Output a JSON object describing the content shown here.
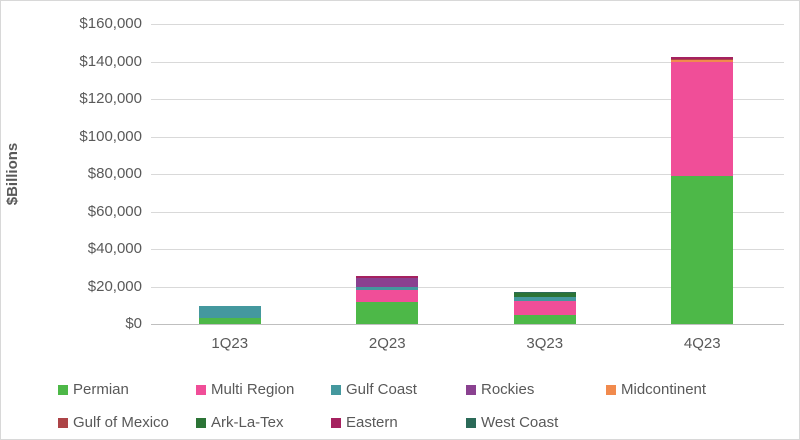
{
  "chart_data": {
    "type": "bar",
    "stacked": true,
    "title": "",
    "xlabel": "",
    "ylabel": "$Billions",
    "ylim": [
      0,
      160000
    ],
    "ytick_step": 20000,
    "ytick_labels": [
      "$0",
      "$20,000",
      "$40,000",
      "$60,000",
      "$80,000",
      "$100,000",
      "$120,000",
      "$140,000",
      "$160,000"
    ],
    "categories": [
      "1Q23",
      "2Q23",
      "3Q23",
      "4Q23"
    ],
    "series": [
      {
        "name": "Permian",
        "color": "#4db848",
        "values": [
          3000,
          12000,
          5000,
          79000
        ]
      },
      {
        "name": "Multi Region",
        "color": "#f04e98",
        "values": [
          0,
          6000,
          7500,
          60500
        ]
      },
      {
        "name": "Gulf Coast",
        "color": "#44989e",
        "values": [
          6500,
          2000,
          2000,
          0
        ]
      },
      {
        "name": "Rockies",
        "color": "#8a4190",
        "values": [
          0,
          4500,
          0,
          0
        ]
      },
      {
        "name": "Midcontinent",
        "color": "#f18a4d",
        "values": [
          0,
          0,
          0,
          1500
        ]
      },
      {
        "name": "Gulf of Mexico",
        "color": "#ad4447",
        "values": [
          0,
          0,
          0,
          500
        ]
      },
      {
        "name": "Ark-La-Tex",
        "color": "#2c7436",
        "values": [
          0,
          0,
          2000,
          0
        ]
      },
      {
        "name": "Eastern",
        "color": "#a5215f",
        "values": [
          0,
          1000,
          0,
          700
        ]
      },
      {
        "name": "West Coast",
        "color": "#2b6a58",
        "values": [
          0,
          0,
          500,
          0
        ]
      }
    ],
    "grid": true,
    "legend_position": "bottom",
    "text_color": "#595959",
    "gridline_color": "#d9d9d9",
    "axis_line_color": "#bfbfbf"
  },
  "layout_note": ""
}
